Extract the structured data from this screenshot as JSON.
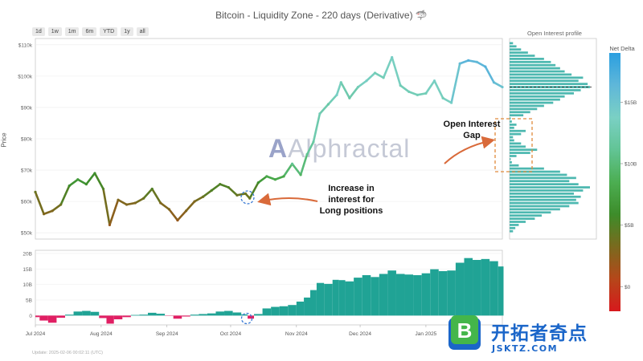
{
  "title": "Bitcoin - Liquidity Zone - 220 days (Derivative) 🦈",
  "range_buttons": [
    "1d",
    "1w",
    "1m",
    "6m",
    "YTD",
    "1y",
    "all"
  ],
  "brand": "Alphractal",
  "update_text": "Update: 2025-02-06 00:02:11 (UTC)",
  "annotations": {
    "long_positions": [
      "Increase in",
      "interest for",
      "Long positions"
    ],
    "oi_gap": [
      "Open Interest",
      "Gap"
    ]
  },
  "watermark": {
    "cn": "开拓者奇点",
    "url": "JSKTZ.COM"
  },
  "colors": {
    "oi_bar": "#4db8b0",
    "oi_positive": "#20a395",
    "oi_negative": "#e01f63",
    "gap_box": "#e08a3c",
    "arrow": "#d96a3a",
    "circle": "#3a7bd5"
  },
  "chart_data": [
    {
      "type": "line",
      "title": "Bitcoin - Liquidity Zone - 220 days (Derivative)",
      "ylabel": "Price",
      "ylim": [
        48000,
        112000
      ],
      "y_ticks": [
        "$50k",
        "$60k",
        "$70k",
        "$80k",
        "$90k",
        "$100k",
        "$110k"
      ],
      "y_tick_values": [
        50000,
        60000,
        70000,
        80000,
        90000,
        100000,
        110000
      ],
      "x_ticks": [
        "Jul 2024",
        "Aug 2024",
        "Sep 2024",
        "Oct 2024",
        "Nov 2024",
        "Dec 2024",
        "Jan 2025"
      ],
      "x_tick_dates": [
        "2024-07-01",
        "2024-08-01",
        "2024-09-01",
        "2024-10-01",
        "2024-11-01",
        "2024-12-01",
        "2025-01-01"
      ],
      "xlim": [
        "2024-07-01",
        "2025-02-06"
      ],
      "color_scale": "Net Delta",
      "series": [
        {
          "x": [
            "2024-07-01",
            "2024-07-05",
            "2024-07-09",
            "2024-07-13",
            "2024-07-17",
            "2024-07-21",
            "2024-07-25",
            "2024-07-29",
            "2024-08-02",
            "2024-08-05",
            "2024-08-09",
            "2024-08-13",
            "2024-08-17",
            "2024-08-21",
            "2024-08-25",
            "2024-08-29",
            "2024-09-02",
            "2024-09-06",
            "2024-09-10",
            "2024-09-14",
            "2024-09-18",
            "2024-09-22",
            "2024-09-26",
            "2024-09-30",
            "2024-10-04",
            "2024-10-08",
            "2024-10-10",
            "2024-10-14",
            "2024-10-18",
            "2024-10-22",
            "2024-10-26",
            "2024-10-30",
            "2024-11-03",
            "2024-11-06",
            "2024-11-09",
            "2024-11-12",
            "2024-11-16",
            "2024-11-20",
            "2024-11-22",
            "2024-11-26",
            "2024-11-30",
            "2024-12-04",
            "2024-12-08",
            "2024-12-12",
            "2024-12-16",
            "2024-12-20",
            "2024-12-24",
            "2024-12-28",
            "2025-01-01",
            "2025-01-05",
            "2025-01-09",
            "2025-01-13",
            "2025-01-17",
            "2025-01-21",
            "2025-01-25",
            "2025-01-29",
            "2025-02-02",
            "2025-02-06"
          ],
          "values": [
            63000,
            56000,
            57000,
            59000,
            65000,
            67000,
            65500,
            69000,
            64000,
            52500,
            60500,
            59000,
            59500,
            61000,
            64000,
            59500,
            57500,
            54000,
            57000,
            60000,
            61500,
            63500,
            65500,
            64500,
            62000,
            62500,
            61000,
            66000,
            68000,
            67000,
            68000,
            72000,
            68500,
            75000,
            79000,
            88000,
            91000,
            94000,
            98000,
            93000,
            96500,
            98500,
            101000,
            99500,
            106000,
            97000,
            95000,
            94000,
            94500,
            98500,
            93000,
            91500,
            104000,
            105000,
            104500,
            103000,
            98000,
            96500
          ],
          "net_delta": [
            4,
            3,
            3,
            4,
            6,
            7,
            6,
            6,
            5,
            2,
            3,
            3,
            3,
            4,
            5,
            3,
            3,
            2,
            3,
            3,
            4,
            5,
            5,
            5,
            4,
            4,
            4,
            6,
            8,
            8,
            8,
            11,
            9,
            11,
            12,
            13,
            12,
            14,
            13,
            12,
            13,
            14,
            13,
            13,
            14,
            13,
            13,
            13,
            13,
            14,
            13,
            14,
            16,
            17,
            16,
            17,
            16,
            15
          ]
        }
      ]
    },
    {
      "type": "bar",
      "title": "",
      "ylabel": "",
      "ylim": [
        -3000000000,
        21000000000
      ],
      "y_ticks": [
        "0",
        "5B",
        "10B",
        "15B",
        "20B"
      ],
      "y_tick_values": [
        0,
        5000000000,
        10000000000,
        15000000000,
        20000000000
      ],
      "x_ticks": [
        "Jul 2024",
        "Aug 2024",
        "Sep 2024",
        "Oct 2024",
        "Nov 2024",
        "Dec 2024",
        "Jan 2025"
      ],
      "x": [
        "2024-07-01",
        "2024-07-05",
        "2024-07-09",
        "2024-07-13",
        "2024-07-17",
        "2024-07-21",
        "2024-07-25",
        "2024-07-29",
        "2024-08-02",
        "2024-08-05",
        "2024-08-09",
        "2024-08-13",
        "2024-08-17",
        "2024-08-21",
        "2024-08-25",
        "2024-08-29",
        "2024-09-02",
        "2024-09-06",
        "2024-09-10",
        "2024-09-14",
        "2024-09-18",
        "2024-09-22",
        "2024-09-26",
        "2024-09-30",
        "2024-10-04",
        "2024-10-08",
        "2024-10-10",
        "2024-10-14",
        "2024-10-18",
        "2024-10-22",
        "2024-10-26",
        "2024-10-30",
        "2024-11-03",
        "2024-11-06",
        "2024-11-09",
        "2024-11-12",
        "2024-11-16",
        "2024-11-20",
        "2024-11-22",
        "2024-11-26",
        "2024-11-30",
        "2024-12-04",
        "2024-12-08",
        "2024-12-12",
        "2024-12-16",
        "2024-12-20",
        "2024-12-24",
        "2024-12-28",
        "2025-01-01",
        "2025-01-05",
        "2025-01-09",
        "2025-01-13",
        "2025-01-17",
        "2025-01-21",
        "2025-01-25",
        "2025-01-29",
        "2025-02-02",
        "2025-02-06"
      ],
      "values": [
        -500000000,
        -1600000000,
        -2300000000,
        -700000000,
        300000000,
        1300000000,
        1500000000,
        1200000000,
        -800000000,
        -2600000000,
        -1200000000,
        -500000000,
        200000000,
        300000000,
        900000000,
        600000000,
        -100000000,
        -1000000000,
        -300000000,
        300000000,
        500000000,
        700000000,
        1300000000,
        1500000000,
        1000000000,
        400000000,
        -1000000000,
        500000000,
        2300000000,
        2800000000,
        3000000000,
        3400000000,
        4500000000,
        5800000000,
        8200000000,
        10500000000,
        10200000000,
        11500000000,
        11400000000,
        11000000000,
        12200000000,
        13000000000,
        12400000000,
        13400000000,
        14500000000,
        13400000000,
        13200000000,
        13000000000,
        13600000000,
        14900000000,
        14300000000,
        14500000000,
        17000000000,
        18500000000,
        17900000000,
        18200000000,
        17500000000,
        15800000000
      ]
    },
    {
      "type": "bar",
      "title": "Open Interest profile",
      "orientation": "horizontal",
      "ylim": [
        48000,
        112000
      ],
      "y": [
        50500,
        51500,
        52500,
        53500,
        54500,
        55500,
        56500,
        57500,
        58500,
        59500,
        60500,
        61500,
        62500,
        63500,
        64500,
        65500,
        66500,
        67500,
        68500,
        69500,
        70500,
        71500,
        72500,
        73500,
        74500,
        75500,
        76500,
        77500,
        78500,
        79500,
        80500,
        81500,
        82500,
        83500,
        84500,
        85500,
        86500,
        87500,
        88500,
        89500,
        90500,
        91500,
        92500,
        93500,
        94500,
        95500,
        96500,
        97500,
        98500,
        99500,
        100500,
        101500,
        102500,
        103500,
        104500,
        105500,
        106500,
        107500,
        108500,
        109500,
        110500
      ],
      "values": [
        3,
        5,
        8,
        14,
        22,
        28,
        36,
        44,
        52,
        60,
        58,
        62,
        56,
        64,
        70,
        60,
        52,
        58,
        50,
        44,
        30,
        8,
        2,
        1,
        6,
        18,
        24,
        14,
        10,
        4,
        3,
        10,
        14,
        4,
        6,
        2,
        1,
        12,
        18,
        24,
        30,
        38,
        44,
        48,
        56,
        62,
        70,
        68,
        60,
        64,
        54,
        48,
        44,
        40,
        36,
        30,
        22,
        16,
        10,
        6,
        3
      ]
    },
    {
      "type": "heatmap",
      "title": "Net Delta",
      "ticks": [
        "$0",
        "$5B",
        "$10B",
        "$15B"
      ],
      "tick_values": [
        0,
        5,
        10,
        15
      ],
      "range": [
        -2,
        19
      ],
      "colors": [
        "#d7191c",
        "#b5471a",
        "#7a6a1e",
        "#3d8c2a",
        "#4cae52",
        "#62c495",
        "#7ad0c4",
        "#5fb7d9",
        "#2b9fe0"
      ]
    }
  ]
}
